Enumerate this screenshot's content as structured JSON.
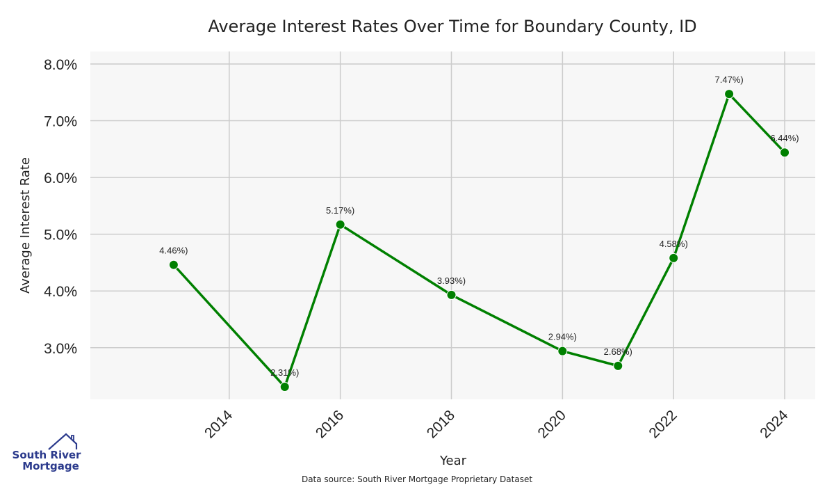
{
  "chart_data": {
    "type": "line",
    "title": "Average Interest Rates Over Time for Boundary County, ID",
    "xlabel": "Year",
    "ylabel": "Average Interest Rate",
    "x": [
      2013,
      2015,
      2016,
      2018,
      2020,
      2021,
      2022,
      2023,
      2024
    ],
    "series": [
      {
        "values": [
          4.46,
          2.31,
          5.17,
          3.93,
          2.94,
          2.68,
          4.58,
          7.47,
          6.44
        ]
      }
    ],
    "data_labels": [
      "4.46%)",
      "2.31%)",
      "5.17%)",
      "3.93%)",
      "2.94%)",
      "2.68%)",
      "4.58%)",
      "7.47%)",
      "6.44%)"
    ],
    "xticks": [
      2014,
      2016,
      2018,
      2020,
      2022,
      2024
    ],
    "xtick_labels": [
      "2014",
      "2016",
      "2018",
      "2020",
      "2022",
      "2024"
    ],
    "yticks": [
      3,
      4,
      5,
      6,
      7,
      8
    ],
    "ytick_labels": [
      "3.0%",
      "4.0%",
      "5.0%",
      "6.0%",
      "7.0%",
      "8.0%"
    ],
    "xlim": [
      2011.5,
      2024.55
    ],
    "ylim": [
      2.09,
      8.22
    ],
    "grid": true,
    "line_color": "#008000",
    "background_color": "#f7f7f7",
    "grid_color": "#cccccc"
  },
  "footer": {
    "source": "Data source: South River Mortgage Proprietary Dataset"
  },
  "logo": {
    "line1": "South River",
    "line2": "Mortgage",
    "color": "#2b3a8c"
  }
}
